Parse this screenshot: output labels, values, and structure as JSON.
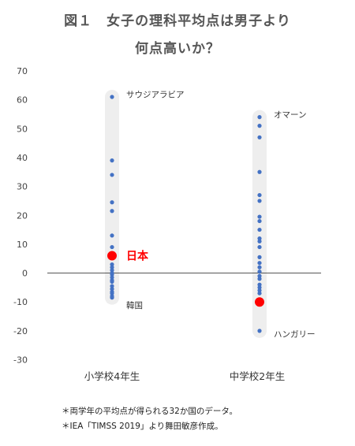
{
  "chart_data": {
    "type": "scatter",
    "title_line1": "図１　女子の理科平均点は男子より",
    "title_line2": "何点高いか？",
    "categories": [
      "小学校4年生",
      "中学校2年生"
    ],
    "ylim": [
      -30,
      70
    ],
    "yticks": [
      70,
      60,
      50,
      40,
      30,
      20,
      10,
      0,
      -10,
      -20,
      -30
    ],
    "grid": false,
    "series": [
      {
        "category": "小学校4年生",
        "values": [
          61,
          39,
          34,
          24.5,
          21.5,
          13,
          9,
          6,
          3,
          2,
          1,
          0,
          -0.5,
          -1.5,
          -2.5,
          -3,
          -4.5,
          -5.5,
          -6.5,
          -7,
          -8,
          -8.5
        ]
      },
      {
        "category": "中学校2年生",
        "values": [
          54,
          51,
          47,
          35,
          27,
          25,
          19.5,
          18,
          15,
          12,
          11,
          9,
          5.5,
          3.5,
          2,
          0.5,
          -1,
          -2,
          -4,
          -5,
          -6,
          -7,
          -9.5,
          -20
        ]
      }
    ],
    "highlights": [
      {
        "category": "小学校4年生",
        "value": 6,
        "label": "日本",
        "color": "#ff0000"
      },
      {
        "category": "中学校2年生",
        "value": -10,
        "label": "",
        "color": "#ff0000"
      }
    ],
    "annotations": [
      {
        "category": "小学校4年生",
        "value": 62,
        "label": "サウジアラビア"
      },
      {
        "category": "小学校4年生",
        "value": -11,
        "label": "韓国"
      },
      {
        "category": "中学校2年生",
        "value": 55,
        "label": "オマーン"
      },
      {
        "category": "中学校2年生",
        "value": -21,
        "label": "ハンガリー"
      }
    ],
    "colors": {
      "point": "#4472c4",
      "highlight": "#ff0000",
      "band": "#eeeeee",
      "axis": "#555555"
    }
  },
  "notes": {
    "line1": "＊両学年の平均点が得られる32か国のデータ。",
    "line2": "＊IEA「TIMSS 2019」より舞田敏彦作成。"
  }
}
